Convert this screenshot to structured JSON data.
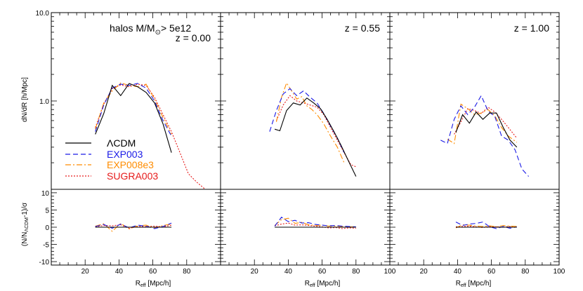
{
  "figure": {
    "ylabel_top": "dN/dR [h/Mpc]",
    "ylabel_bottom": "(N/N",
    "ylabel_bottom_sub": "ΛCDM",
    "ylabel_bottom_tail": "-1)/σ",
    "xlabel": "R",
    "xlabel_sub": "eff",
    "xlabel_unit": " [Mpc/h]",
    "mass_label": "halos M/M",
    "mass_label_sub": "⊙",
    "mass_label_tail": "> 5e12",
    "top_yticks": [
      "10.0",
      "1.0"
    ],
    "bottom_yticks": [
      "10",
      "5",
      "0",
      "-5",
      "-10"
    ]
  },
  "colors": {
    "LCDM": "#000000",
    "EXP003": "#1a1ae6",
    "EXP008e3": "#ff8c00",
    "SUGRA003": "#e61a1a"
  },
  "legend": [
    {
      "key": "LCDM",
      "label": "ΛCDM",
      "dash": ""
    },
    {
      "key": "EXP003",
      "label": "EXP003",
      "dash": "7,4"
    },
    {
      "key": "EXP008e3",
      "label": "EXP008e3",
      "dash": "8,3,2,3"
    },
    {
      "key": "SUGRA003",
      "label": "SUGRA003",
      "dash": "2,2"
    }
  ],
  "chart_data": [
    {
      "type": "line",
      "panel": "z = 0.00",
      "title": "z = 0.00",
      "xlabel": "R_eff [Mpc/h]",
      "ylabel": "dN/dR [h/Mpc]",
      "xlim": [
        0,
        100
      ],
      "xticks": [
        20,
        40,
        60,
        80
      ],
      "ylim": [
        0.1,
        10.0
      ],
      "ylog": true,
      "series": [
        {
          "name": "ΛCDM",
          "x": [
            26,
            31,
            36,
            41,
            46,
            51,
            56,
            61,
            66,
            71
          ],
          "y": [
            0.42,
            0.72,
            1.5,
            1.15,
            1.58,
            1.45,
            1.25,
            0.95,
            0.55,
            0.26
          ]
        },
        {
          "name": "EXP003",
          "x": [
            26,
            31,
            36,
            41,
            46,
            51,
            56,
            61,
            66,
            71
          ],
          "y": [
            0.45,
            0.9,
            1.4,
            1.55,
            1.5,
            1.58,
            1.4,
            1.0,
            0.6,
            0.4
          ]
        },
        {
          "name": "EXP008e3",
          "x": [
            26,
            31,
            36,
            41,
            46,
            51,
            56,
            61,
            66,
            71
          ],
          "y": [
            0.48,
            0.95,
            1.3,
            1.6,
            1.5,
            1.45,
            1.55,
            1.05,
            0.65,
            0.42
          ]
        },
        {
          "name": "SUGRA003",
          "x": [
            26,
            31,
            36,
            41,
            46,
            51,
            56,
            61,
            66,
            71,
            76,
            81,
            86,
            91
          ],
          "y": [
            0.5,
            0.92,
            1.38,
            1.52,
            1.45,
            1.55,
            1.5,
            1.1,
            0.7,
            0.45,
            0.26,
            0.15,
            0.12,
            0.1
          ]
        }
      ],
      "residuals": {
        "ylim": [
          -11,
          11
        ],
        "yticks": [
          10,
          5,
          0,
          -5,
          -10
        ],
        "series": [
          {
            "name": "ΛCDM",
            "x": [
              26,
              31,
              36,
              41,
              46,
              51,
              56,
              61,
              66,
              71
            ],
            "y": [
              0,
              0,
              0,
              0,
              0,
              0,
              0,
              0,
              0,
              0
            ]
          },
          {
            "name": "EXP003",
            "x": [
              26,
              31,
              36,
              41,
              46,
              51,
              56,
              61,
              66,
              71
            ],
            "y": [
              0.2,
              0.8,
              -0.3,
              0.9,
              -0.2,
              0.6,
              0.3,
              -0.4,
              0.2,
              1.2
            ]
          },
          {
            "name": "EXP008e3",
            "x": [
              26,
              31,
              36,
              41,
              46,
              51,
              56,
              61,
              66,
              71
            ],
            "y": [
              0.3,
              1.0,
              -1.2,
              1.1,
              -0.5,
              0.4,
              0.6,
              -0.2,
              0.5,
              0.9
            ]
          },
          {
            "name": "SUGRA003",
            "x": [
              26,
              31,
              36,
              41,
              46,
              51,
              56,
              61,
              66,
              71
            ],
            "y": [
              0.1,
              0.5,
              0.4,
              0.7,
              -0.3,
              0.2,
              0.2,
              0.3,
              0.1,
              0.6
            ]
          }
        ]
      }
    },
    {
      "type": "line",
      "panel": "z = 0.55",
      "title": "z = 0.55",
      "xlabel": "R_eff [Mpc/h]",
      "xlim": [
        0,
        100
      ],
      "xticks": [
        20,
        40,
        60,
        80,
        100
      ],
      "ylim": [
        0.1,
        10.0
      ],
      "ylog": true,
      "series": [
        {
          "name": "ΛCDM",
          "x": [
            32,
            35,
            39,
            43,
            47,
            51,
            55,
            59,
            63,
            67,
            71,
            75,
            80
          ],
          "y": [
            0.48,
            0.46,
            0.78,
            0.95,
            0.9,
            1.08,
            0.95,
            0.82,
            0.62,
            0.45,
            0.32,
            0.22,
            0.14
          ]
        },
        {
          "name": "EXP003",
          "x": [
            29,
            33,
            37,
            41,
            45,
            49,
            53,
            57,
            61,
            65,
            69,
            73
          ],
          "y": [
            0.45,
            0.78,
            1.2,
            1.38,
            1.15,
            1.3,
            1.1,
            0.95,
            0.72,
            0.52,
            0.38,
            0.26
          ]
        },
        {
          "name": "EXP008e3",
          "x": [
            33,
            36,
            39,
            42,
            45,
            48,
            51,
            54,
            57,
            61,
            65,
            69,
            73
          ],
          "y": [
            0.58,
            1.1,
            1.6,
            1.3,
            1.05,
            1.12,
            0.88,
            0.8,
            0.7,
            0.55,
            0.4,
            0.3,
            0.2
          ]
        },
        {
          "name": "SUGRA003",
          "x": [
            33,
            37,
            41,
            45,
            49,
            53,
            57,
            61,
            65,
            69,
            73,
            77,
            80
          ],
          "y": [
            0.6,
            0.9,
            1.15,
            1.0,
            0.95,
            0.9,
            0.85,
            0.7,
            0.5,
            0.36,
            0.26,
            0.19,
            0.18
          ]
        }
      ],
      "residuals": {
        "ylim": [
          -11,
          11
        ],
        "yticks": [
          10,
          5,
          0,
          -5,
          -10
        ],
        "series": [
          {
            "name": "ΛCDM",
            "x": [
              32,
              36,
              40,
              44,
              48,
              52,
              56,
              60,
              64,
              68,
              72,
              76,
              80
            ],
            "y": [
              0,
              0,
              0,
              0,
              0,
              0,
              0,
              0,
              0,
              0,
              0,
              0,
              0
            ]
          },
          {
            "name": "EXP003",
            "x": [
              32,
              36,
              40,
              44,
              48,
              52,
              56,
              60,
              64,
              68,
              72,
              76,
              80
            ],
            "y": [
              0.3,
              2.9,
              1.6,
              2.0,
              1.2,
              1.3,
              0.8,
              0.6,
              0.4,
              0.5,
              0.3,
              0.2,
              0.1
            ]
          },
          {
            "name": "EXP008e3",
            "x": [
              32,
              36,
              40,
              44,
              48,
              52,
              56,
              60,
              64,
              68,
              72,
              76,
              80
            ],
            "y": [
              0.5,
              2.2,
              2.6,
              1.1,
              1.4,
              0.7,
              0.5,
              0.6,
              0.3,
              0.3,
              0.2,
              0.1,
              0.1
            ]
          },
          {
            "name": "SUGRA003",
            "x": [
              32,
              36,
              40,
              44,
              48,
              52,
              56,
              60,
              64,
              68,
              72,
              76,
              80
            ],
            "y": [
              0.4,
              0.9,
              1.2,
              0.6,
              0.7,
              0.5,
              0.3,
              0.1,
              -0.2,
              -0.1,
              -0.4,
              -0.2,
              -0.3
            ]
          }
        ]
      }
    },
    {
      "type": "line",
      "panel": "z = 1.00",
      "title": "z = 1.00",
      "xlabel": "R_eff [Mpc/h]",
      "xlim": [
        0,
        100
      ],
      "xticks": [
        20,
        40,
        60,
        80,
        100
      ],
      "ylim": [
        0.1,
        10.0
      ],
      "ylog": true,
      "series": [
        {
          "name": "ΛCDM",
          "x": [
            39,
            43,
            47,
            51,
            55,
            59,
            63,
            67,
            71,
            75
          ],
          "y": [
            0.44,
            0.7,
            0.56,
            0.75,
            0.62,
            0.73,
            0.73,
            0.5,
            0.36,
            0.3
          ]
        },
        {
          "name": "EXP003",
          "x": [
            30,
            34,
            38,
            42,
            46,
            50,
            54,
            58,
            62,
            66,
            70,
            74,
            78,
            82
          ],
          "y": [
            0.36,
            0.33,
            0.62,
            0.88,
            0.7,
            0.85,
            1.15,
            0.77,
            0.67,
            0.4,
            0.36,
            0.28,
            0.17,
            0.14
          ]
        },
        {
          "name": "EXP008e3",
          "x": [
            34,
            38,
            42,
            46,
            50,
            54,
            58,
            62,
            66,
            70,
            75
          ],
          "y": [
            0.37,
            0.33,
            0.92,
            0.82,
            0.7,
            0.73,
            0.8,
            0.68,
            0.5,
            0.4,
            0.34
          ]
        },
        {
          "name": "SUGRA003",
          "x": [
            38,
            42,
            46,
            50,
            54,
            58,
            62,
            66,
            70,
            75
          ],
          "y": [
            0.42,
            0.58,
            0.82,
            0.78,
            0.72,
            0.85,
            0.75,
            0.62,
            0.5,
            0.38
          ]
        }
      ],
      "residuals": {
        "ylim": [
          -11,
          11
        ],
        "yticks": [
          10,
          5,
          0,
          -5,
          -10
        ],
        "series": [
          {
            "name": "ΛCDM",
            "x": [
              39,
              43,
              47,
              51,
              55,
              59,
              63,
              67,
              71,
              75
            ],
            "y": [
              0,
              0,
              0,
              0,
              0,
              0,
              0,
              0,
              0,
              0
            ]
          },
          {
            "name": "EXP003",
            "x": [
              39,
              43,
              47,
              51,
              55,
              59,
              63,
              67,
              71,
              75
            ],
            "y": [
              1.5,
              0.5,
              0.9,
              1.1,
              1.5,
              0.1,
              -0.4,
              0.2,
              -0.3,
              0.1
            ]
          },
          {
            "name": "EXP008e3",
            "x": [
              39,
              43,
              47,
              51,
              55,
              59,
              63,
              67,
              71,
              75
            ],
            "y": [
              -0.2,
              0.7,
              0.6,
              0.3,
              0.2,
              0.4,
              0.1,
              0.5,
              0.3,
              0.2
            ]
          },
          {
            "name": "SUGRA003",
            "x": [
              39,
              43,
              47,
              51,
              55,
              59,
              63,
              67,
              71,
              75
            ],
            "y": [
              0.1,
              0.2,
              0.3,
              0.1,
              -0.1,
              0.2,
              0.1,
              0.0,
              0.2,
              0.1
            ]
          }
        ]
      }
    }
  ]
}
